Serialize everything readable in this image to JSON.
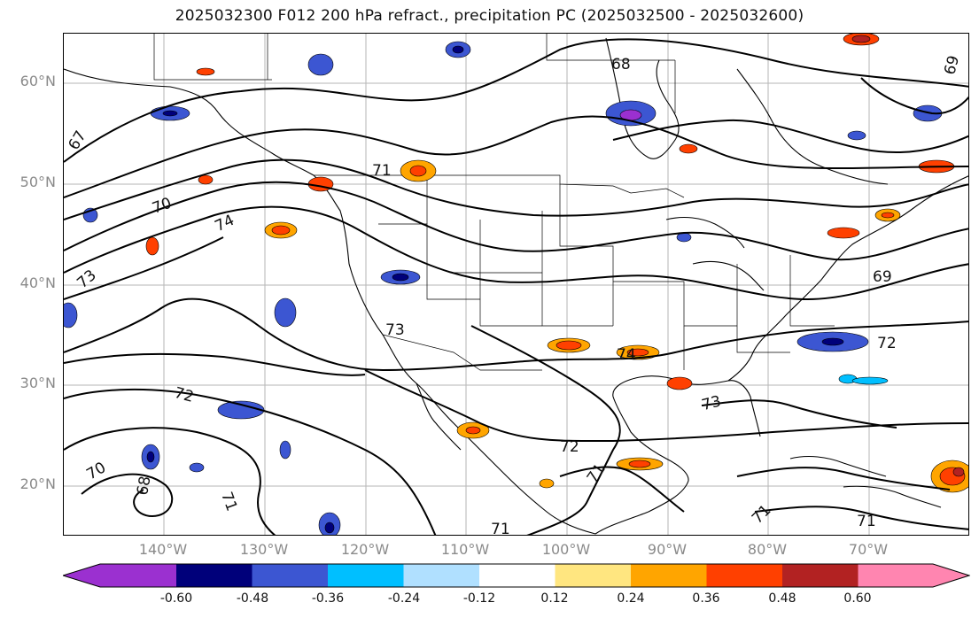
{
  "title": "2025032300 F012 200 hPa refract., precipitation PC (2025032500 - 2025032600)",
  "lat_labels": [
    "60°N",
    "50°N",
    "40°N",
    "30°N",
    "20°N"
  ],
  "lon_labels": [
    "140°W",
    "130°W",
    "120°W",
    "110°W",
    "100°W",
    "90°W",
    "80°W",
    "70°W"
  ],
  "contour_labels": [
    "68",
    "69",
    "67",
    "71",
    "70",
    "74",
    "73",
    "69",
    "73",
    "72",
    "74",
    "72",
    "73",
    "72",
    "70",
    "68",
    "71",
    "71",
    "71",
    "71",
    "71"
  ],
  "colorbar": {
    "ticks": [
      "-0.60",
      "-0.48",
      "-0.36",
      "-0.24",
      "-0.12",
      "0.12",
      "0.24",
      "0.36",
      "0.48",
      "0.60"
    ],
    "colors": [
      "#9b30d0",
      "#00007a",
      "#3c56d2",
      "#00bfff",
      "#b0e0ff",
      "#ffffff",
      "#ffe680",
      "#ffa500",
      "#ff4000",
      "#b22222",
      "#ff85b0"
    ]
  },
  "map": {
    "projection": "cylindrical",
    "lon_range": [
      -150,
      -60
    ],
    "lat_range": [
      15,
      65
    ],
    "gridlines": true,
    "features": [
      "coastlines",
      "country borders",
      "state borders",
      "200 hPa refractivity contours",
      "precipitation PC shading"
    ]
  }
}
